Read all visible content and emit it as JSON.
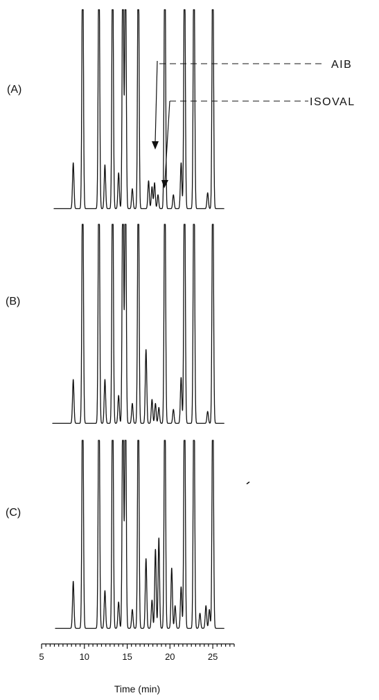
{
  "chart_data": {
    "type": "line",
    "xlabel": "Time (min)",
    "ylabel": "",
    "xlim": [
      5,
      27.5
    ],
    "xticks": [
      5,
      10,
      15,
      20,
      25
    ],
    "xtick_labels": [
      "5",
      "10",
      "15",
      "20",
      "25"
    ],
    "grid": false,
    "panels": [
      {
        "label": "(A)",
        "series": [
          {
            "peaks": [
              {
                "t": 8.7,
                "h": 0.23
              },
              {
                "t": 9.8,
                "h": 1.0
              },
              {
                "t": 11.7,
                "h": 1.0
              },
              {
                "t": 12.4,
                "h": 0.22
              },
              {
                "t": 13.3,
                "h": 1.0
              },
              {
                "t": 14.0,
                "h": 0.18
              },
              {
                "t": 14.5,
                "h": 1.0
              },
              {
                "t": 14.8,
                "h": 1.0
              },
              {
                "t": 15.6,
                "h": 0.1
              },
              {
                "t": 16.3,
                "h": 1.0
              },
              {
                "t": 17.5,
                "h": 0.14
              },
              {
                "t": 17.9,
                "h": 0.11
              },
              {
                "t": 18.2,
                "h": 0.13
              },
              {
                "t": 18.6,
                "h": 0.07
              },
              {
                "t": 19.4,
                "h": 1.0
              },
              {
                "t": 20.4,
                "h": 0.07
              },
              {
                "t": 21.3,
                "h": 0.23
              },
              {
                "t": 21.7,
                "h": 1.0
              },
              {
                "t": 22.8,
                "h": 1.0
              },
              {
                "t": 24.4,
                "h": 0.08
              },
              {
                "t": 25.0,
                "h": 1.0
              }
            ]
          }
        ],
        "annotations": [
          {
            "text": "AIB",
            "t": 17.6
          },
          {
            "text": "ISOVAL",
            "t": 18.7
          }
        ]
      },
      {
        "label": "(B)",
        "series": [
          {
            "peaks": [
              {
                "t": 8.7,
                "h": 0.22
              },
              {
                "t": 9.8,
                "h": 1.0
              },
              {
                "t": 11.7,
                "h": 1.0
              },
              {
                "t": 12.4,
                "h": 0.22
              },
              {
                "t": 13.3,
                "h": 1.0
              },
              {
                "t": 14.0,
                "h": 0.14
              },
              {
                "t": 14.5,
                "h": 1.0
              },
              {
                "t": 14.8,
                "h": 1.0
              },
              {
                "t": 15.6,
                "h": 0.1
              },
              {
                "t": 16.3,
                "h": 1.0
              },
              {
                "t": 17.2,
                "h": 0.37
              },
              {
                "t": 17.9,
                "h": 0.12
              },
              {
                "t": 18.3,
                "h": 0.1
              },
              {
                "t": 18.7,
                "h": 0.08
              },
              {
                "t": 19.4,
                "h": 1.0
              },
              {
                "t": 20.4,
                "h": 0.07
              },
              {
                "t": 21.3,
                "h": 0.23
              },
              {
                "t": 21.7,
                "h": 1.0
              },
              {
                "t": 22.8,
                "h": 1.0
              },
              {
                "t": 24.4,
                "h": 0.06
              },
              {
                "t": 25.0,
                "h": 1.0
              }
            ]
          }
        ]
      },
      {
        "label": "(C)",
        "series": [
          {
            "peaks": [
              {
                "t": 8.7,
                "h": 0.25
              },
              {
                "t": 9.8,
                "h": 1.0
              },
              {
                "t": 11.7,
                "h": 1.0
              },
              {
                "t": 12.4,
                "h": 0.2
              },
              {
                "t": 13.3,
                "h": 1.0
              },
              {
                "t": 14.0,
                "h": 0.14
              },
              {
                "t": 14.5,
                "h": 1.0
              },
              {
                "t": 14.8,
                "h": 1.0
              },
              {
                "t": 15.6,
                "h": 0.1
              },
              {
                "t": 16.3,
                "h": 1.0
              },
              {
                "t": 17.2,
                "h": 0.37
              },
              {
                "t": 17.9,
                "h": 0.15
              },
              {
                "t": 18.3,
                "h": 0.42
              },
              {
                "t": 18.7,
                "h": 0.48
              },
              {
                "t": 19.4,
                "h": 1.0
              },
              {
                "t": 20.2,
                "h": 0.32
              },
              {
                "t": 20.6,
                "h": 0.12
              },
              {
                "t": 21.3,
                "h": 0.22
              },
              {
                "t": 21.7,
                "h": 1.0
              },
              {
                "t": 22.8,
                "h": 1.0
              },
              {
                "t": 23.5,
                "h": 0.08
              },
              {
                "t": 24.2,
                "h": 0.12
              },
              {
                "t": 24.6,
                "h": 0.1
              },
              {
                "t": 25.0,
                "h": 1.0
              }
            ]
          }
        ]
      }
    ]
  }
}
